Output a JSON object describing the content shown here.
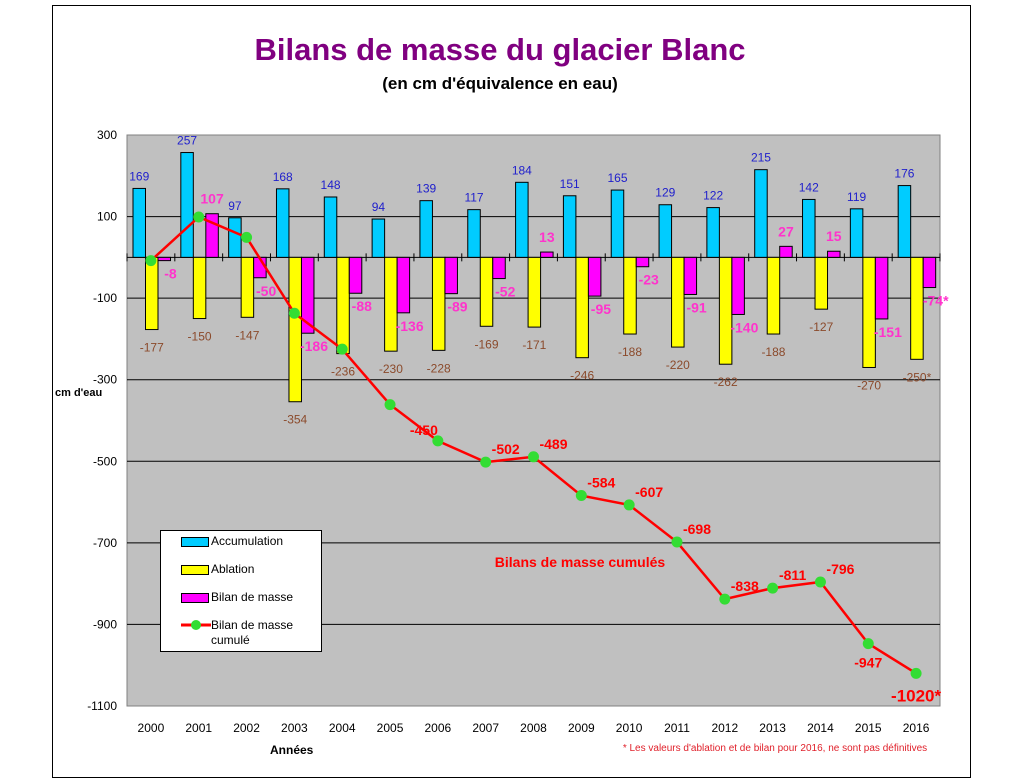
{
  "chart_data": {
    "type": "bar",
    "title": "Bilans de masse du glacier Blanc",
    "subtitle": "(en cm d'équivalence en eau)",
    "xlabel": "Années",
    "ylabel": "cm d'eau",
    "ylim": [
      -1100,
      300
    ],
    "yticks": [
      300,
      100,
      -100,
      -300,
      -500,
      -700,
      -900,
      -1100
    ],
    "grid": true,
    "categories": [
      "2000",
      "2001",
      "2002",
      "2003",
      "2004",
      "2005",
      "2006",
      "2007",
      "2008",
      "2009",
      "2010",
      "2011",
      "2012",
      "2013",
      "2014",
      "2015",
      "2016"
    ],
    "series": [
      {
        "name": "Accumulation",
        "type": "bar",
        "color": "#00ccff",
        "values": [
          169,
          257,
          97,
          168,
          148,
          94,
          139,
          117,
          184,
          151,
          165,
          129,
          122,
          215,
          142,
          119,
          176
        ],
        "labels": [
          "169",
          "257",
          "97",
          "168",
          "148",
          "94",
          "139",
          "117",
          "184",
          "151",
          "165",
          "129",
          "122",
          "215",
          "142",
          "119",
          "176"
        ]
      },
      {
        "name": "Ablation",
        "type": "bar",
        "color": "#ffff00",
        "values": [
          -177,
          -150,
          -147,
          -354,
          -236,
          -230,
          -228,
          -169,
          -171,
          -246,
          -188,
          -220,
          -262,
          -188,
          -127,
          -270,
          -250
        ],
        "labels": [
          "-177",
          "-150",
          "-147",
          "-354",
          "-236",
          "-230",
          "-228",
          "-169",
          "-171",
          "-246",
          "-188",
          "-220",
          "-262",
          "-188",
          "-127",
          "-270",
          "-250*"
        ]
      },
      {
        "name": "Bilan de masse",
        "type": "bar",
        "color": "#ff00ff",
        "values": [
          -8,
          107,
          -50,
          -186,
          -88,
          -136,
          -89,
          -52,
          13,
          -95,
          -23,
          -91,
          -140,
          27,
          15,
          -151,
          -74
        ],
        "labels": [
          "-8",
          "107",
          "-50",
          "-186",
          "-88",
          "-136",
          "-89",
          "-52",
          "13",
          "-95",
          "-23",
          "-91",
          "-140",
          "27",
          "15",
          "-151",
          "-74*"
        ]
      },
      {
        "name": "Bilan de masse cumulé",
        "type": "line",
        "color": "#ff0000",
        "marker_color": "#33dd33",
        "values": [
          -8,
          99,
          49,
          -137,
          -225,
          -361,
          -450,
          -502,
          -489,
          -584,
          -607,
          -698,
          -838,
          -811,
          -796,
          -947,
          -1020
        ],
        "labels": [
          "",
          "",
          "",
          "",
          "",
          "",
          "-450",
          "-502",
          "-489",
          "-584",
          "-607",
          "-698",
          "-838",
          "-811",
          "-796",
          "-947",
          "-1020*"
        ]
      }
    ],
    "annotation": "Bilans de masse cumulés",
    "footnote": "* Les valeurs d'ablation et de bilan pour 2016, ne sont pas définitives",
    "legend_position": "bottom-left"
  }
}
